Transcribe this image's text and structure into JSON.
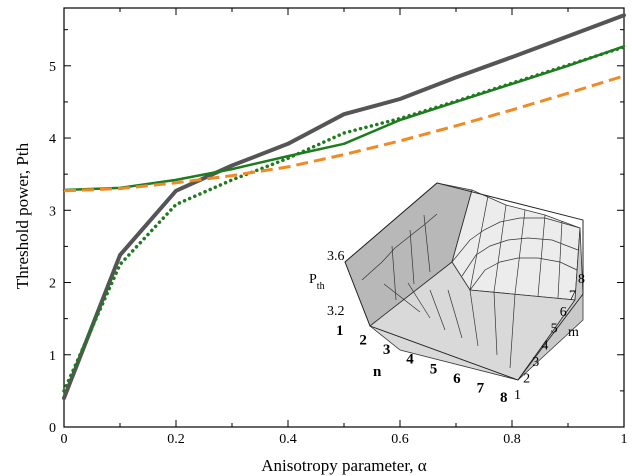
{
  "chart_data": {
    "type": "line",
    "xlabel": "Anisotropy parameter, α",
    "ylabel": "Threshold power, Pth",
    "xlim": [
      0,
      1
    ],
    "ylim": [
      0,
      5.8
    ],
    "x_ticks": [
      0,
      0.2,
      0.4,
      0.6,
      0.8,
      1
    ],
    "x_tick_labels": [
      "0",
      "0.2",
      "0.4",
      "0.6",
      "0.8",
      "1"
    ],
    "y_ticks": [
      0,
      1,
      2,
      3,
      4,
      5
    ],
    "y_tick_labels": [
      "0",
      "1",
      "2",
      "3",
      "4",
      "5"
    ],
    "grid": false,
    "series": [
      {
        "color": "#555555",
        "style": "solid",
        "width": 4,
        "points": [
          [
            0,
            0.4
          ],
          [
            0.1,
            2.38
          ],
          [
            0.2,
            3.27
          ],
          [
            0.3,
            3.62
          ],
          [
            0.4,
            3.92
          ],
          [
            0.5,
            4.33
          ],
          [
            0.6,
            4.54
          ],
          [
            0.7,
            4.84
          ],
          [
            0.8,
            5.12
          ],
          [
            0.9,
            5.41
          ],
          [
            1.0,
            5.7
          ]
        ]
      },
      {
        "color": "#1e7b1e",
        "style": "solid",
        "width": 2.5,
        "points": [
          [
            0,
            3.28
          ],
          [
            0.1,
            3.31
          ],
          [
            0.2,
            3.42
          ],
          [
            0.3,
            3.57
          ],
          [
            0.4,
            3.75
          ],
          [
            0.5,
            3.92
          ],
          [
            0.6,
            4.25
          ],
          [
            0.7,
            4.5
          ],
          [
            0.8,
            4.75
          ],
          [
            0.9,
            5.0
          ],
          [
            1.0,
            5.27
          ]
        ]
      },
      {
        "color": "#1e7b1e",
        "style": "dotted",
        "width": 3.5,
        "points": [
          [
            0,
            0.5
          ],
          [
            0.1,
            2.25
          ],
          [
            0.2,
            3.08
          ],
          [
            0.3,
            3.42
          ],
          [
            0.4,
            3.72
          ],
          [
            0.5,
            4.07
          ],
          [
            0.6,
            4.27
          ],
          [
            0.7,
            4.51
          ],
          [
            0.8,
            4.76
          ],
          [
            0.9,
            5.01
          ],
          [
            1.0,
            5.26
          ]
        ]
      },
      {
        "color": "#f08a24",
        "style": "dashed",
        "width": 3,
        "points": [
          [
            0,
            3.27
          ],
          [
            0.1,
            3.3
          ],
          [
            0.2,
            3.38
          ],
          [
            0.3,
            3.48
          ],
          [
            0.4,
            3.6
          ],
          [
            0.5,
            3.77
          ],
          [
            0.6,
            3.96
          ],
          [
            0.7,
            4.17
          ],
          [
            0.8,
            4.39
          ],
          [
            0.9,
            4.62
          ],
          [
            1.0,
            4.86
          ]
        ]
      }
    ],
    "inset": {
      "type": "surface3d",
      "z_label_main": "P",
      "z_label_sub": "th",
      "z_tick_labels": [
        "3.6",
        "3.2"
      ],
      "n_label": "n",
      "n_tick_labels": [
        "1",
        "2",
        "3",
        "4",
        "5",
        "6",
        "7",
        "8"
      ],
      "m_label": "m",
      "m_tick_labels": [
        "1",
        "2",
        "3",
        "4",
        "5",
        "6",
        "7",
        "8"
      ]
    }
  }
}
